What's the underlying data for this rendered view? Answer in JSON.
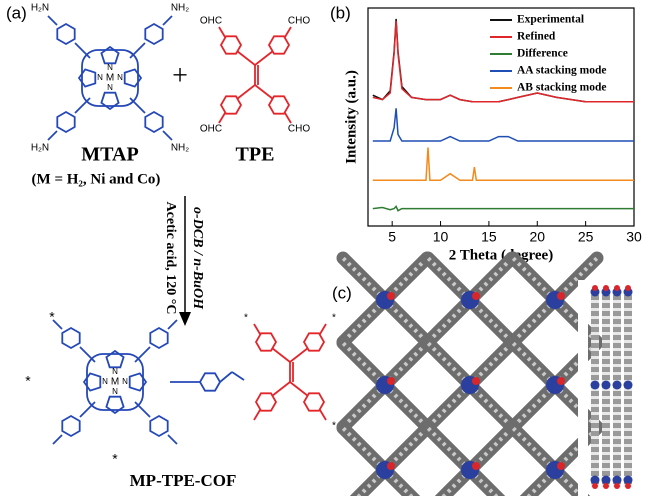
{
  "panels": {
    "a": "(a)",
    "b": "(b)",
    "c": "(c)"
  },
  "scheme": {
    "monomer_1": "MTAP",
    "monomer_1_note": "(M = H₂, Ni and Co)",
    "monomer_2": "TPE",
    "plus": "+",
    "conditions_1": "o-DCB / n-BuOH",
    "conditions_2": "Acetic acid, 120 °C",
    "product": "MP-TPE-COF",
    "metal": "M",
    "atom_n": "N",
    "amine_right": "NH₂",
    "amine_left": "H₂N",
    "aldehyde_right": "CHO",
    "aldehyde_left": "OHC",
    "end_group": "*"
  },
  "chart_data": {
    "type": "line",
    "x_label": "2 Theta (degree)",
    "y_label": "Intensity (a.u.)",
    "x": [
      3,
      4,
      4.8,
      5.2,
      5.4,
      5.6,
      6,
      7,
      8.5,
      8.7,
      8.9,
      10,
      11,
      12,
      13.3,
      13.5,
      13.7,
      15,
      16,
      17,
      18,
      20,
      22,
      25,
      28,
      30
    ],
    "xlim": [
      2.5,
      30
    ],
    "xticks": [
      5,
      10,
      15,
      20,
      25,
      30
    ],
    "ylim": [
      0,
      100
    ],
    "legend": "upper right",
    "series": [
      {
        "name": "Experimental",
        "color": "#111111",
        "values": [
          60,
          58,
          62,
          80,
          95,
          80,
          64,
          59,
          58,
          58,
          58,
          58,
          60,
          58,
          57,
          57,
          57,
          57,
          57,
          58,
          59,
          61,
          59,
          57,
          57,
          57
        ]
      },
      {
        "name": "Refined",
        "color": "#e0262b",
        "values": [
          59,
          58,
          61,
          79,
          94,
          79,
          63,
          59,
          58,
          58,
          58,
          58,
          60,
          58,
          57,
          57,
          57,
          57,
          57,
          58,
          59,
          61,
          59,
          57,
          57,
          57
        ]
      },
      {
        "name": "Difference",
        "color": "#2e7d32",
        "values": [
          8,
          8.5,
          7.5,
          8,
          9,
          7,
          8,
          8,
          8,
          8,
          8,
          8,
          8,
          8,
          8,
          8,
          8,
          8,
          8,
          8,
          8,
          8,
          8,
          8,
          8,
          8
        ]
      },
      {
        "name": "AA stacking mode",
        "color": "#1f4fb4",
        "values": [
          39,
          39,
          39,
          45,
          54,
          42,
          39,
          39,
          39,
          39,
          39,
          39,
          41,
          39,
          39,
          39,
          39,
          39,
          41,
          41,
          39,
          39,
          39,
          39,
          39,
          39
        ]
      },
      {
        "name": "AB stacking mode",
        "color": "#f28a1e",
        "values": [
          21,
          21,
          21,
          21,
          21,
          21,
          21,
          21,
          21,
          36,
          21,
          21,
          24,
          21,
          21,
          27,
          21,
          21,
          21,
          21,
          21,
          21,
          21,
          21,
          21,
          21
        ]
      }
    ]
  }
}
